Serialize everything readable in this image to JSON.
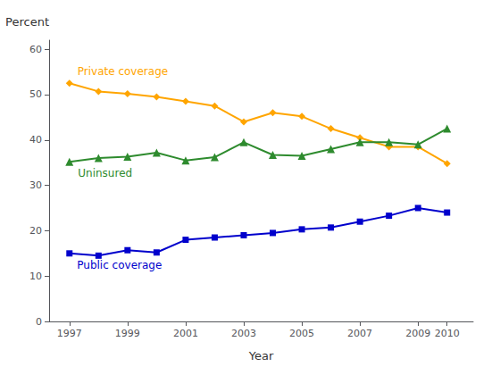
{
  "chart_data": {
    "type": "line",
    "x_label": "Year",
    "y_label": "Percent",
    "x": [
      1997,
      1998,
      1999,
      2000,
      2001,
      2002,
      2003,
      2004,
      2005,
      2006,
      2007,
      2008,
      2009,
      2010
    ],
    "series": [
      {
        "name": "Private coverage",
        "color": "#FFA500",
        "marker": "diamond",
        "values": [
          52.5,
          50.7,
          50.2,
          49.5,
          48.5,
          47.5,
          44.0,
          46.0,
          45.2,
          42.5,
          40.5,
          38.5,
          38.5,
          34.8
        ]
      },
      {
        "name": "Uninsured",
        "color": "#2E8B2E",
        "marker": "triangle",
        "values": [
          35.2,
          36.0,
          36.3,
          37.2,
          35.5,
          36.2,
          39.5,
          36.7,
          36.5,
          38.0,
          39.5,
          39.5,
          39.0,
          42.5
        ]
      },
      {
        "name": "Public coverage",
        "color": "#0000CC",
        "marker": "square",
        "values": [
          15.0,
          14.5,
          15.7,
          15.2,
          18.0,
          18.5,
          19.0,
          19.5,
          20.3,
          20.7,
          22.0,
          23.3,
          25.0,
          24.0
        ]
      }
    ],
    "xlim": [
      1996.3,
      2010.9
    ],
    "xticks": [
      1997,
      1999,
      2001,
      2003,
      2005,
      2007,
      2009,
      2010
    ],
    "ylim": [
      0,
      62
    ],
    "yticks": [
      0,
      10,
      20,
      30,
      40,
      50,
      60
    ],
    "grid": false
  }
}
